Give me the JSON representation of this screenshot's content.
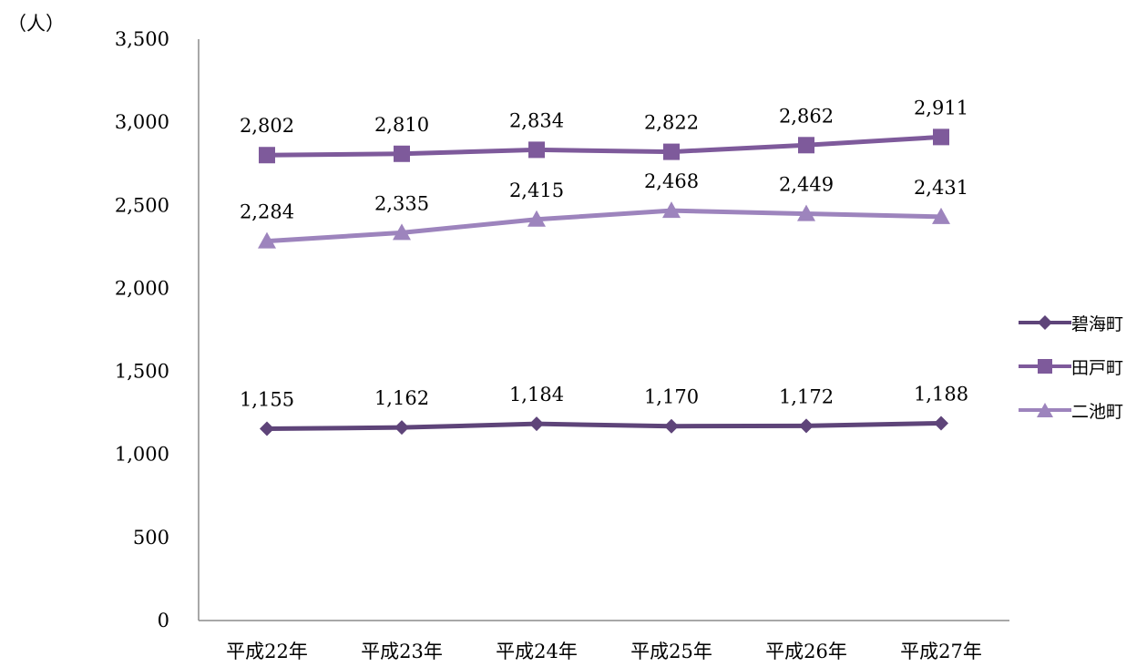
{
  "chart_data": {
    "type": "line",
    "ylabel": "（人）",
    "ylim": [
      0,
      3500
    ],
    "yticks": [
      "0",
      "500",
      "1,000",
      "1,500",
      "2,000",
      "2,500",
      "3,000",
      "3,500"
    ],
    "categories": [
      "平成22年",
      "平成23年",
      "平成24年",
      "平成25年",
      "平成26年",
      "平成27年"
    ],
    "grid": false,
    "legend_position": "right",
    "series": [
      {
        "name": "碧海町",
        "marker": "diamond",
        "color": "#5e4479",
        "values": [
          1155,
          1162,
          1184,
          1170,
          1172,
          1188
        ],
        "labels": [
          "1,155",
          "1,162",
          "1,184",
          "1,170",
          "1,172",
          "1,188"
        ]
      },
      {
        "name": "田戸町",
        "marker": "square",
        "color": "#7e5a9b",
        "values": [
          2802,
          2810,
          2834,
          2822,
          2862,
          2911
        ],
        "labels": [
          "2,802",
          "2,810",
          "2,834",
          "2,822",
          "2,862",
          "2,911"
        ]
      },
      {
        "name": "二池町",
        "marker": "triangle",
        "color": "#9d84bd",
        "values": [
          2284,
          2335,
          2415,
          2468,
          2449,
          2431
        ],
        "labels": [
          "2,284",
          "2,335",
          "2,415",
          "2,468",
          "2,449",
          "2,431"
        ]
      }
    ]
  }
}
